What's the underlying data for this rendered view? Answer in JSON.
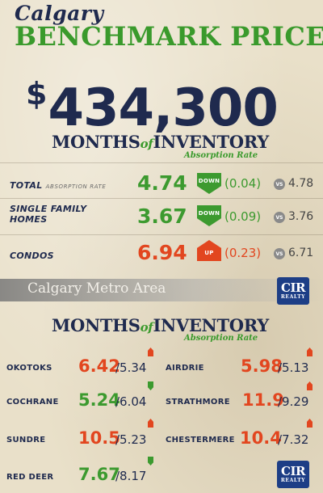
{
  "header": {
    "city": "Calgary",
    "title": "BENCHMARK PRICE",
    "price_symbol": "$",
    "price": "434,300"
  },
  "section1": {
    "heading_a": "MONTHS",
    "heading_of": "of",
    "heading_b": "INVENTORY",
    "subheading": "Absorption Rate",
    "rows": [
      {
        "label": "TOTAL",
        "label_small": "ABSORPTION RATE",
        "value": "4.74",
        "direction": "DOWN",
        "change": "(0.04)",
        "vs": "VS",
        "previous": "4.78"
      },
      {
        "label": "SINGLE FAMILY HOMES",
        "label_small": "",
        "value": "3.67",
        "direction": "DOWN",
        "change": "(0.09)",
        "vs": "VS",
        "previous": "3.76"
      },
      {
        "label": "CONDOS",
        "label_small": "",
        "value": "6.94",
        "direction": "UP",
        "change": "(0.23)",
        "vs": "VS",
        "previous": "6.71"
      }
    ]
  },
  "metro": {
    "label": "Calgary Metro Area"
  },
  "logo": {
    "mark": "CIR",
    "sub": "REALTY"
  },
  "section2": {
    "heading_a": "MONTHS",
    "heading_of": "of",
    "heading_b": "INVENTORY",
    "subheading": "Absorption Rate",
    "cities": [
      {
        "name": "OKOTOKS",
        "value": "6.42",
        "previous": "/5.34",
        "direction": "up"
      },
      {
        "name": "AIRDRIE",
        "value": "5.98",
        "previous": "/5.13",
        "direction": "up"
      },
      {
        "name": "COCHRANE",
        "value": "5.24",
        "previous": "/6.04",
        "direction": "down"
      },
      {
        "name": "STRATHMORE",
        "value": "11.9",
        "previous": "/9.29",
        "direction": "up"
      },
      {
        "name": "SUNDRE",
        "value": "10.5",
        "previous": "/5.23",
        "direction": "up"
      },
      {
        "name": "CHESTERMERE",
        "value": "10.4",
        "previous": "/7.32",
        "direction": "up"
      },
      {
        "name": "RED DEER",
        "value": "7.67",
        "previous": "/8.17",
        "direction": "down"
      }
    ]
  },
  "colors": {
    "navy": "#1f2a4e",
    "green": "#3c9a2f",
    "red": "#e2461f",
    "logo_blue": "#1d3e86"
  }
}
